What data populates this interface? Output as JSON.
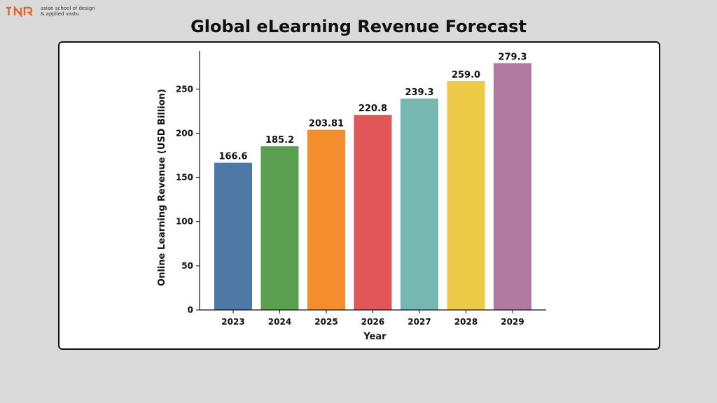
{
  "logo": {
    "line1": "asian school of design",
    "line2": "& applied vastu",
    "color": "#e0652b"
  },
  "page_title": "Global eLearning Revenue Forecast",
  "chart_data": {
    "type": "bar",
    "title": "",
    "xlabel": "Year",
    "ylabel": "Online Learning Revenue (USD Billion)",
    "categories": [
      "2023",
      "2024",
      "2025",
      "2026",
      "2027",
      "2028",
      "2029"
    ],
    "values": [
      166.6,
      185.2,
      203.81,
      220.8,
      239.3,
      259.0,
      279.3
    ],
    "value_labels": [
      "166.6",
      "185.2",
      "203.81",
      "220.8",
      "239.3",
      "259.0",
      "279.3"
    ],
    "colors": [
      "#4e79a7",
      "#59a14f",
      "#f28e2b",
      "#e15759",
      "#76b7b2",
      "#edc948",
      "#b07aa1"
    ],
    "ylim": [
      0,
      293
    ],
    "yticks": [
      0,
      50,
      100,
      150,
      200,
      250
    ],
    "grid": false,
    "legend": "none"
  }
}
